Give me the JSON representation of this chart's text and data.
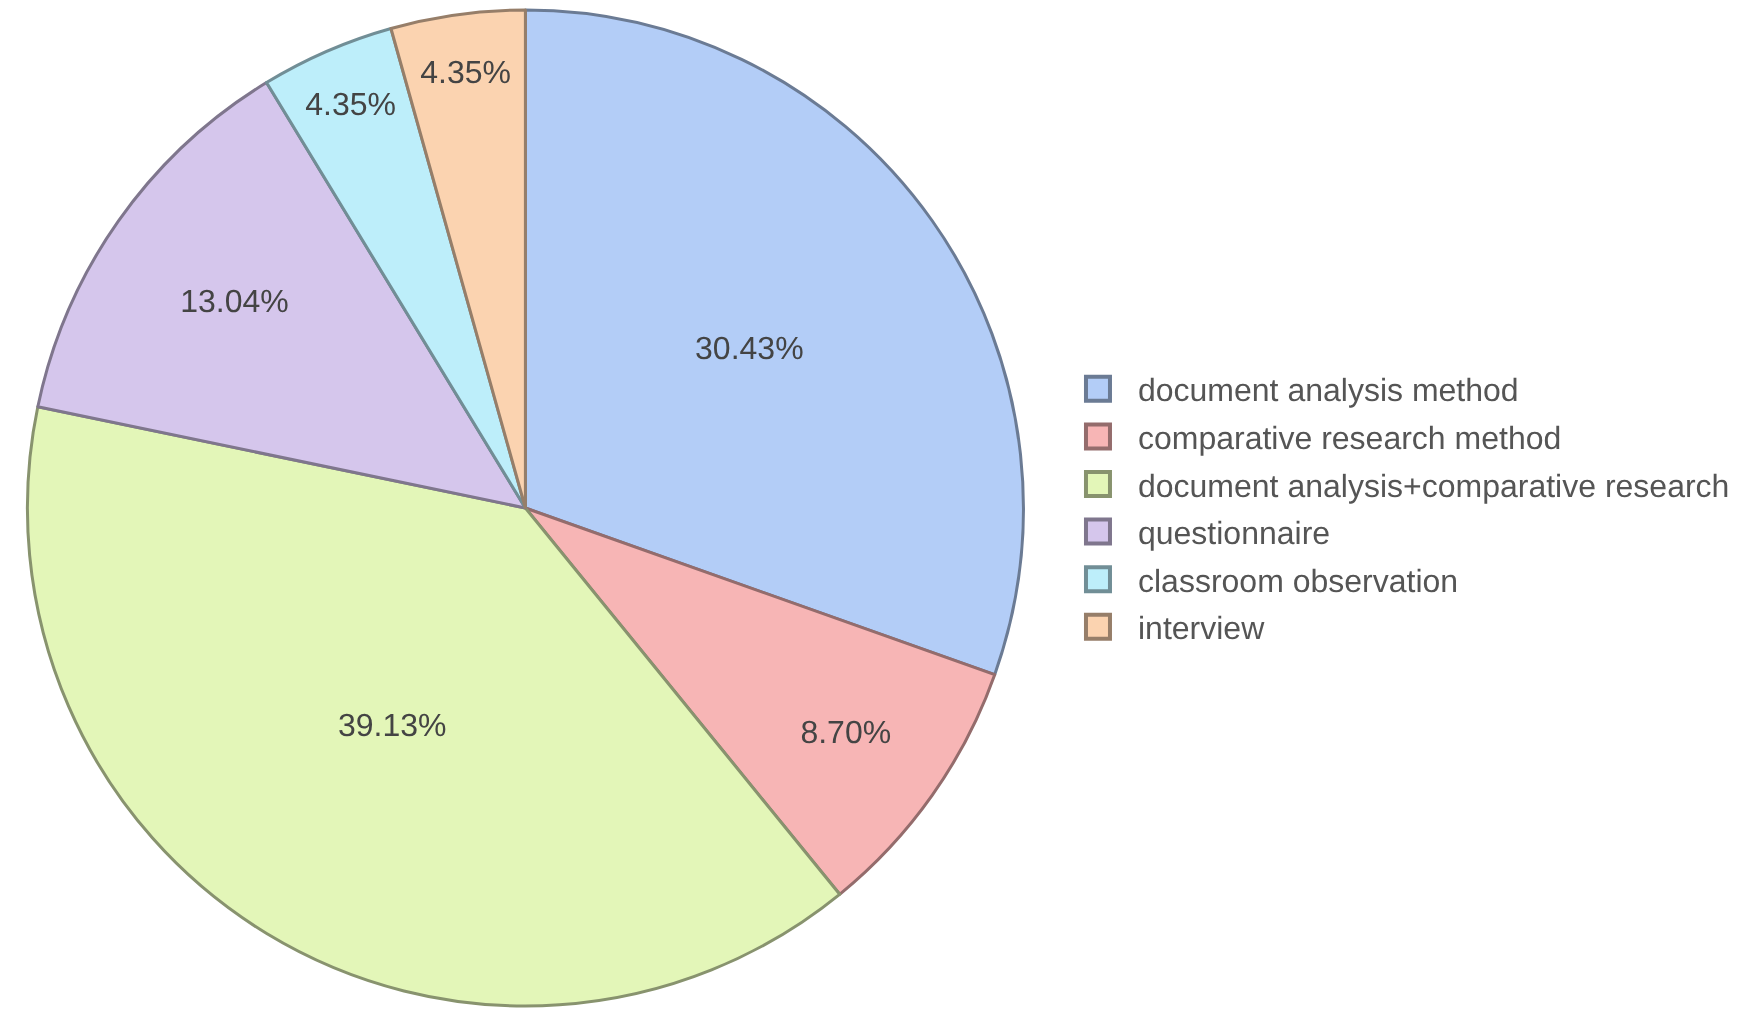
{
  "chart_data": {
    "type": "pie",
    "categories": [
      "document analysis method",
      "comparative research method",
      "document analysis+comparative research",
      "questionnaire",
      "classroom observation",
      "interview"
    ],
    "values": [
      30.43,
      8.7,
      39.13,
      13.04,
      4.35,
      4.35
    ],
    "value_labels": [
      "30.43%",
      "8.70%",
      "39.13%",
      "13.04%",
      "4.35%",
      "4.35%"
    ],
    "colors": [
      "#b3cdf7",
      "#f7b5b5",
      "#e3f6b8",
      "#d5c6ec",
      "#bdeefa",
      "#fbd3b0"
    ],
    "legend": "right"
  }
}
